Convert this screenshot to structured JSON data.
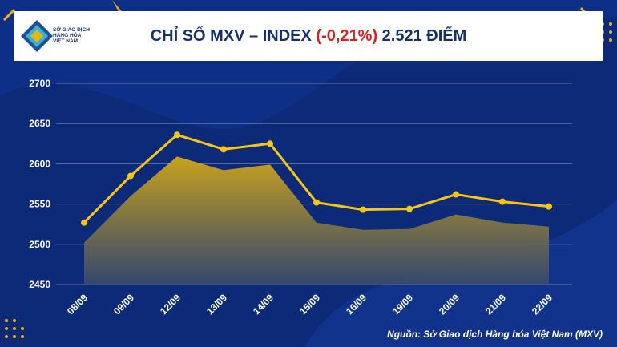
{
  "header": {
    "logo_lines": [
      "SỞ GIAO DỊCH",
      "HÀNG HÓA",
      "VIỆT NAM"
    ],
    "title_prefix": "CHỈ SỐ MXV – INDEX ",
    "title_change": "(-0,21%)",
    "title_suffix": " 2.521 ĐIỂM"
  },
  "source": "Nguồn: Sở Giao dịch Hàng hóa Việt Nam (MXV)",
  "colors": {
    "background": "#0d2a78",
    "line": "#f5c518",
    "area_top": "#c9a21c",
    "area_bottom": "#3a4a6b",
    "change_negative": "#e01e1e"
  },
  "chart_data": {
    "type": "line",
    "categories": [
      "08/09",
      "09/09",
      "12/09",
      "13/09",
      "14/09",
      "15/09",
      "16/09",
      "19/09",
      "20/09",
      "21/09",
      "22/09"
    ],
    "series": [
      {
        "values": [
          2527,
          2585,
          2636,
          2618,
          2625,
          2552,
          2543,
          2544,
          2562,
          2553,
          2547
        ]
      },
      {
        "values": [
          2502,
          2560,
          2609,
          2592,
          2599,
          2527,
          2518,
          2519,
          2537,
          2527,
          2522
        ]
      }
    ],
    "yticks": [
      2450,
      2500,
      2550,
      2600,
      2650,
      2700
    ],
    "ylim": [
      2450,
      2700
    ],
    "grid": true
  }
}
